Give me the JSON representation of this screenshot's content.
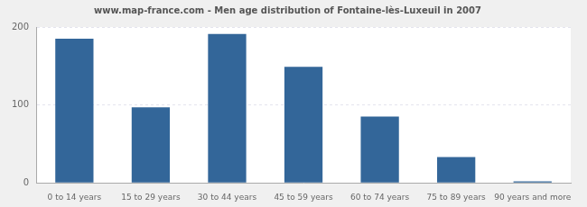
{
  "chart_data": {
    "type": "bar",
    "title": "www.map-france.com - Men age distribution of Fontaine-lès-Luxeuil in 2007",
    "categories": [
      "0 to 14 years",
      "15 to 29 years",
      "30 to 44 years",
      "45 to 59 years",
      "60 to 74 years",
      "75 to 89 years",
      "90 years and more"
    ],
    "values": [
      185,
      97,
      191,
      149,
      85,
      33,
      2
    ],
    "color": "#336699",
    "ylim": [
      0,
      200
    ],
    "yticks": [
      0,
      100,
      200
    ],
    "grid": true
  }
}
